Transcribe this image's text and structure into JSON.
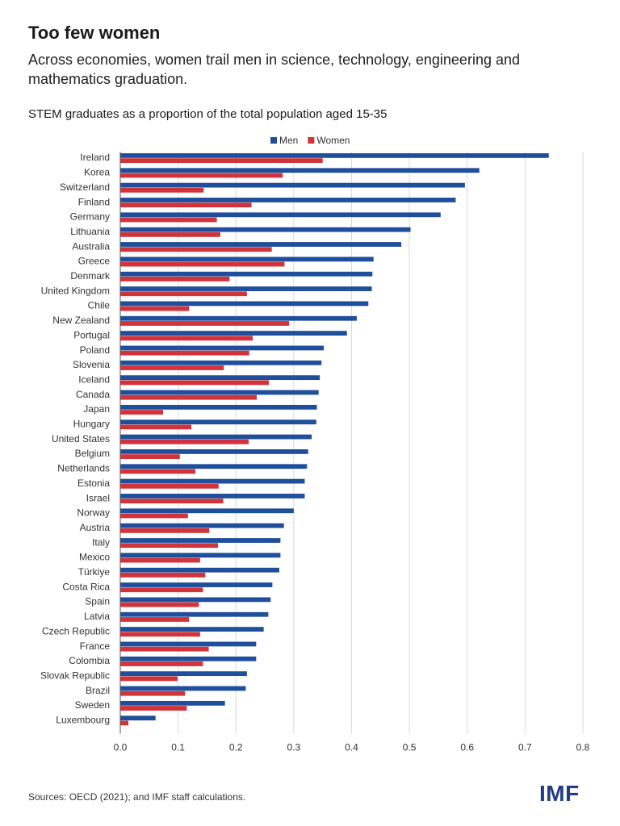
{
  "header": {
    "title": "Too few women",
    "subtitle": "Across economies, women trail men in science, technology, engineering and mathematics graduation."
  },
  "footer": {
    "source": "Sources: OECD (2021); and IMF staff calculations.",
    "logo_text": "IMF"
  },
  "chart_data": {
    "type": "bar",
    "orientation": "horizontal",
    "title": "STEM graduates as a proportion of the total population aged 15-35",
    "xlabel": "",
    "ylabel": "",
    "xlim": [
      0,
      0.8
    ],
    "xticks": [
      "0.0",
      "0.1",
      "0.2",
      "0.3",
      "0.4",
      "0.5",
      "0.6",
      "0.7",
      "0.8"
    ],
    "grid": "vertical",
    "legend_position": "top-center",
    "categories": [
      "Ireland",
      "Korea",
      "Switzerland",
      "Finland",
      "Germany",
      "Lithuania",
      "Australia",
      "Greece",
      "Denmark",
      "United Kingdom",
      "Chile",
      "New Zealand",
      "Portugal",
      "Poland",
      "Slovenia",
      "Iceland",
      "Canada",
      "Japan",
      "Hungary",
      "United States",
      "Belgium",
      "Netherlands",
      "Estonia",
      "Israel",
      "Norway",
      "Austria",
      "Italy",
      "Mexico",
      "Türkiye",
      "Costa Rica",
      "Spain",
      "Latvia",
      "Czech Republic",
      "France",
      "Colombia",
      "Slovak Republic",
      "Brazil",
      "Sweden",
      "Luxembourg"
    ],
    "series": [
      {
        "name": "Men",
        "color": "#1f4e9c",
        "values": [
          0.741,
          0.621,
          0.596,
          0.58,
          0.554,
          0.502,
          0.486,
          0.438,
          0.436,
          0.435,
          0.429,
          0.409,
          0.392,
          0.352,
          0.348,
          0.345,
          0.343,
          0.34,
          0.339,
          0.331,
          0.325,
          0.323,
          0.319,
          0.319,
          0.3,
          0.283,
          0.277,
          0.277,
          0.275,
          0.263,
          0.26,
          0.256,
          0.248,
          0.235,
          0.235,
          0.219,
          0.217,
          0.181,
          0.061
        ]
      },
      {
        "name": "Women",
        "color": "#d1333b",
        "values": [
          0.35,
          0.281,
          0.144,
          0.227,
          0.167,
          0.173,
          0.262,
          0.284,
          0.189,
          0.219,
          0.119,
          0.292,
          0.229,
          0.223,
          0.179,
          0.257,
          0.236,
          0.074,
          0.123,
          0.222,
          0.103,
          0.13,
          0.17,
          0.178,
          0.117,
          0.154,
          0.169,
          0.138,
          0.147,
          0.143,
          0.136,
          0.119,
          0.138,
          0.153,
          0.143,
          0.099,
          0.112,
          0.115,
          0.014
        ]
      }
    ]
  }
}
